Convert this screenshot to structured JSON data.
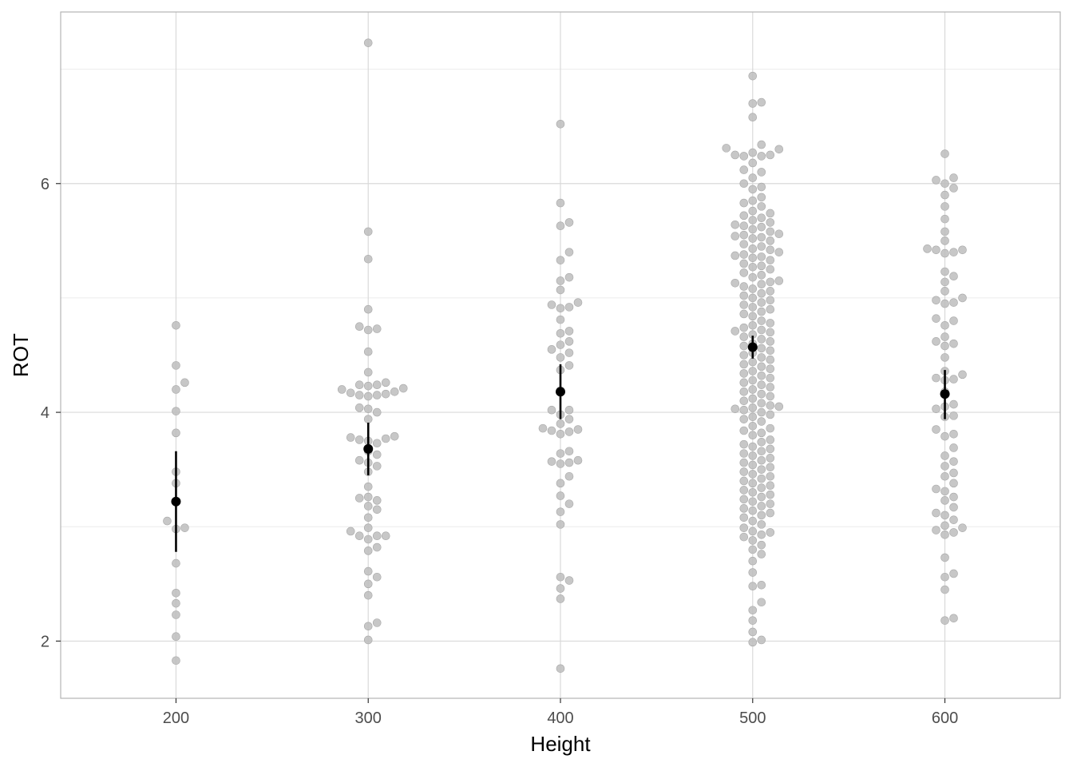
{
  "chart_data": {
    "type": "scatter",
    "title": "",
    "xlabel": "Height",
    "ylabel": "ROT",
    "x_ticks": [
      200,
      300,
      400,
      500,
      600
    ],
    "y_ticks": [
      2,
      4,
      6
    ],
    "xlim": [
      140,
      660
    ],
    "ylim": [
      1.5,
      7.5
    ],
    "grid": true,
    "legend": "none",
    "colors": {
      "points": "#bdbdbd",
      "summary": "#000000",
      "grid": "#d9d9d9",
      "panel_border": "#b3b3b3"
    },
    "points": [
      {
        "x": 200,
        "y": [
          4.76,
          4.41,
          4.26,
          4.2,
          4.01,
          3.82,
          3.48,
          3.38,
          3.05,
          2.98,
          2.99,
          2.68,
          2.42,
          2.33,
          2.23,
          2.04,
          1.83
        ]
      },
      {
        "x": 300,
        "y": [
          7.23,
          5.58,
          5.34,
          4.9,
          4.75,
          4.73,
          4.72,
          4.53,
          4.35,
          4.26,
          4.24,
          4.24,
          4.23,
          4.21,
          4.2,
          4.18,
          4.17,
          4.16,
          4.15,
          4.15,
          4.14,
          4.04,
          4.03,
          4.0,
          3.94,
          3.79,
          3.78,
          3.77,
          3.76,
          3.75,
          3.73,
          3.66,
          3.63,
          3.58,
          3.56,
          3.53,
          3.48,
          3.35,
          3.26,
          3.25,
          3.23,
          3.18,
          3.15,
          3.08,
          2.99,
          2.96,
          2.92,
          2.92,
          2.92,
          2.89,
          2.82,
          2.79,
          2.61,
          2.56,
          2.5,
          2.4,
          2.16,
          2.13,
          2.01
        ]
      },
      {
        "x": 400,
        "y": [
          6.52,
          5.83,
          5.66,
          5.63,
          5.4,
          5.33,
          5.18,
          5.15,
          5.07,
          4.96,
          4.94,
          4.92,
          4.91,
          4.81,
          4.71,
          4.69,
          4.62,
          4.59,
          4.55,
          4.52,
          4.48,
          4.41,
          4.37,
          4.19,
          4.02,
          4.02,
          3.98,
          3.94,
          3.9,
          3.86,
          3.85,
          3.84,
          3.83,
          3.81,
          3.66,
          3.64,
          3.58,
          3.57,
          3.56,
          3.55,
          3.44,
          3.38,
          3.27,
          3.2,
          3.13,
          3.02,
          2.56,
          2.53,
          2.46,
          2.37,
          1.76
        ]
      },
      {
        "x": 500,
        "y": [
          6.94,
          6.71,
          6.7,
          6.58,
          6.34,
          6.31,
          6.3,
          6.27,
          6.25,
          6.25,
          6.24,
          6.24,
          6.18,
          6.12,
          6.1,
          6.05,
          6.0,
          5.97,
          5.95,
          5.88,
          5.85,
          5.83,
          5.8,
          5.76,
          5.74,
          5.72,
          5.7,
          5.68,
          5.66,
          5.64,
          5.63,
          5.62,
          5.6,
          5.58,
          5.56,
          5.55,
          5.54,
          5.53,
          5.52,
          5.5,
          5.47,
          5.45,
          5.43,
          5.42,
          5.4,
          5.38,
          5.37,
          5.36,
          5.35,
          5.33,
          5.3,
          5.28,
          5.27,
          5.25,
          5.22,
          5.2,
          5.18,
          5.15,
          5.14,
          5.13,
          5.12,
          5.1,
          5.08,
          5.06,
          5.04,
          5.02,
          5.0,
          4.98,
          4.96,
          4.94,
          4.92,
          4.9,
          4.88,
          4.86,
          4.84,
          4.8,
          4.78,
          4.76,
          4.74,
          4.72,
          4.71,
          4.7,
          4.68,
          4.66,
          4.64,
          4.62,
          4.6,
          4.58,
          4.56,
          4.54,
          4.52,
          4.5,
          4.48,
          4.46,
          4.44,
          4.42,
          4.4,
          4.38,
          4.36,
          4.34,
          4.32,
          4.3,
          4.28,
          4.26,
          4.24,
          4.22,
          4.2,
          4.18,
          4.16,
          4.14,
          4.12,
          4.1,
          4.08,
          4.06,
          4.05,
          4.04,
          4.03,
          4.02,
          4.0,
          3.98,
          3.96,
          3.94,
          3.92,
          3.88,
          3.86,
          3.84,
          3.82,
          3.8,
          3.76,
          3.74,
          3.72,
          3.7,
          3.68,
          3.66,
          3.64,
          3.62,
          3.6,
          3.58,
          3.56,
          3.54,
          3.52,
          3.5,
          3.48,
          3.46,
          3.44,
          3.42,
          3.4,
          3.38,
          3.36,
          3.34,
          3.32,
          3.3,
          3.28,
          3.26,
          3.24,
          3.22,
          3.2,
          3.18,
          3.16,
          3.14,
          3.12,
          3.1,
          3.08,
          3.05,
          3.02,
          2.99,
          2.96,
          2.95,
          2.93,
          2.91,
          2.88,
          2.84,
          2.8,
          2.76,
          2.7,
          2.6,
          2.49,
          2.48,
          2.34,
          2.27,
          2.18,
          2.08,
          2.01,
          1.99
        ]
      },
      {
        "x": 600,
        "y": [
          6.26,
          6.05,
          6.03,
          6.0,
          5.96,
          5.9,
          5.8,
          5.69,
          5.58,
          5.5,
          5.43,
          5.42,
          5.42,
          5.4,
          5.39,
          5.23,
          5.19,
          5.14,
          5.06,
          5.0,
          4.98,
          4.96,
          4.95,
          4.82,
          4.8,
          4.76,
          4.66,
          4.62,
          4.6,
          4.58,
          4.48,
          4.36,
          4.33,
          4.3,
          4.29,
          4.28,
          4.18,
          4.07,
          4.05,
          4.03,
          3.97,
          3.96,
          3.85,
          3.81,
          3.79,
          3.69,
          3.62,
          3.57,
          3.53,
          3.47,
          3.44,
          3.38,
          3.33,
          3.31,
          3.26,
          3.23,
          3.17,
          3.12,
          3.1,
          3.06,
          3.01,
          2.99,
          2.97,
          2.95,
          2.93,
          2.73,
          2.59,
          2.56,
          2.45,
          2.2,
          2.18
        ]
      }
    ],
    "summary": [
      {
        "x": 200,
        "mean": 3.22,
        "lower": 2.78,
        "upper": 3.66
      },
      {
        "x": 300,
        "mean": 3.68,
        "lower": 3.45,
        "upper": 3.91
      },
      {
        "x": 400,
        "mean": 4.18,
        "lower": 3.94,
        "upper": 4.42
      },
      {
        "x": 500,
        "mean": 4.57,
        "lower": 4.47,
        "upper": 4.67
      },
      {
        "x": 600,
        "mean": 4.16,
        "lower": 3.94,
        "upper": 4.37
      }
    ]
  }
}
